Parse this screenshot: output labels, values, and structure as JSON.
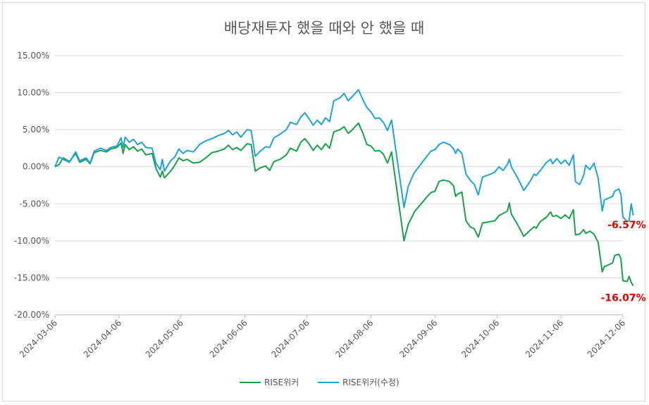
{
  "chart_data": {
    "type": "line",
    "title": "배당재투자 했을 때와 안 했을 때",
    "xlabel": "",
    "ylabel": "",
    "x_ticks": [
      "2024-03-06",
      "2024-04-06",
      "2024-05-06",
      "2024-06-06",
      "2024-07-06",
      "2024-08-06",
      "2024-09-06",
      "2024-10-06",
      "2024-11-06",
      "2024-12-06"
    ],
    "y_ticks": [
      "15.00%",
      "10.00%",
      "5.00%",
      "0.00%",
      "-5.00%",
      "-10.00%",
      "-15.00%",
      "-20.00%"
    ],
    "ylim": [
      -20,
      15
    ],
    "grid": "horizontal",
    "legend": "bottom",
    "series": [
      {
        "name": "RISE위커",
        "color": "#16a34a",
        "end_label": "-16.07%",
        "points": [
          [
            "2024-03-06",
            0.0
          ],
          [
            "2024-03-08",
            0.3
          ],
          [
            "2024-03-10",
            1.2
          ],
          [
            "2024-03-13",
            0.7
          ],
          [
            "2024-03-16",
            1.8
          ],
          [
            "2024-03-18",
            0.6
          ],
          [
            "2024-03-21",
            1.0
          ],
          [
            "2024-03-23",
            0.4
          ],
          [
            "2024-03-25",
            1.9
          ],
          [
            "2024-03-28",
            2.2
          ],
          [
            "2024-03-31",
            2.0
          ],
          [
            "2024-04-02",
            2.4
          ],
          [
            "2024-04-05",
            2.6
          ],
          [
            "2024-04-07",
            3.2
          ],
          [
            "2024-04-08",
            1.8
          ],
          [
            "2024-04-09",
            3.0
          ],
          [
            "2024-04-11",
            2.3
          ],
          [
            "2024-04-13",
            2.7
          ],
          [
            "2024-04-15",
            2.1
          ],
          [
            "2024-04-17",
            2.4
          ],
          [
            "2024-04-19",
            1.6
          ],
          [
            "2024-04-22",
            1.8
          ],
          [
            "2024-04-24",
            -0.3
          ],
          [
            "2024-04-26",
            -1.4
          ],
          [
            "2024-04-27",
            -0.6
          ],
          [
            "2024-04-28",
            -1.5
          ],
          [
            "2024-05-01",
            -0.6
          ],
          [
            "2024-05-03",
            0.2
          ],
          [
            "2024-05-05",
            1.2
          ],
          [
            "2024-05-07",
            0.8
          ],
          [
            "2024-05-09",
            1.0
          ],
          [
            "2024-05-12",
            0.5
          ],
          [
            "2024-05-15",
            0.6
          ],
          [
            "2024-05-18",
            1.2
          ],
          [
            "2024-05-21",
            1.9
          ],
          [
            "2024-05-24",
            2.1
          ],
          [
            "2024-05-27",
            2.4
          ],
          [
            "2024-05-29",
            2.9
          ],
          [
            "2024-05-31",
            2.3
          ],
          [
            "2024-06-02",
            2.6
          ],
          [
            "2024-06-04",
            2.2
          ],
          [
            "2024-06-07",
            3.1
          ],
          [
            "2024-06-09",
            3.0
          ],
          [
            "2024-06-11",
            -0.6
          ],
          [
            "2024-06-13",
            -0.2
          ],
          [
            "2024-06-16",
            0.1
          ],
          [
            "2024-06-18",
            -0.5
          ],
          [
            "2024-06-20",
            0.7
          ],
          [
            "2024-06-23",
            1.0
          ],
          [
            "2024-06-26",
            1.6
          ],
          [
            "2024-06-28",
            2.5
          ],
          [
            "2024-07-01",
            2.1
          ],
          [
            "2024-07-03",
            3.3
          ],
          [
            "2024-07-05",
            3.8
          ],
          [
            "2024-07-07",
            3.1
          ],
          [
            "2024-07-09",
            2.2
          ],
          [
            "2024-07-11",
            2.9
          ],
          [
            "2024-07-13",
            2.3
          ],
          [
            "2024-07-15",
            3.1
          ],
          [
            "2024-07-17",
            2.5
          ],
          [
            "2024-07-19",
            4.7
          ],
          [
            "2024-07-22",
            5.0
          ],
          [
            "2024-07-24",
            5.4
          ],
          [
            "2024-07-26",
            4.5
          ],
          [
            "2024-07-28",
            5.0
          ],
          [
            "2024-07-31",
            5.9
          ],
          [
            "2024-08-02",
            4.6
          ],
          [
            "2024-08-04",
            3.0
          ],
          [
            "2024-08-06",
            2.8
          ],
          [
            "2024-08-08",
            2.1
          ],
          [
            "2024-08-10",
            2.2
          ],
          [
            "2024-08-12",
            1.7
          ],
          [
            "2024-08-14",
            0.5
          ],
          [
            "2024-08-16",
            2.0
          ],
          [
            "2024-08-22",
            -10.0
          ],
          [
            "2024-08-24",
            -7.8
          ],
          [
            "2024-08-26",
            -6.7
          ],
          [
            "2024-08-27",
            -6.1
          ],
          [
            "2024-08-30",
            -5.1
          ],
          [
            "2024-09-02",
            -4.1
          ],
          [
            "2024-09-04",
            -3.5
          ],
          [
            "2024-09-06",
            -3.3
          ],
          [
            "2024-09-08",
            -2.0
          ],
          [
            "2024-09-10",
            -1.8
          ],
          [
            "2024-09-13",
            -2.0
          ],
          [
            "2024-09-15",
            -2.6
          ],
          [
            "2024-09-16",
            -4.0
          ],
          [
            "2024-09-17",
            -3.7
          ],
          [
            "2024-09-19",
            -3.4
          ],
          [
            "2024-09-21",
            -7.3
          ],
          [
            "2024-09-23",
            -8.1
          ],
          [
            "2024-09-25",
            -8.4
          ],
          [
            "2024-09-27",
            -9.5
          ],
          [
            "2024-09-29",
            -7.6
          ],
          [
            "2024-10-03",
            -7.4
          ],
          [
            "2024-10-05",
            -7.3
          ],
          [
            "2024-10-07",
            -6.6
          ],
          [
            "2024-10-09",
            -6.3
          ],
          [
            "2024-10-11",
            -6.0
          ],
          [
            "2024-10-12",
            -4.9
          ],
          [
            "2024-10-13",
            -6.4
          ],
          [
            "2024-10-16",
            -7.8
          ],
          [
            "2024-10-19",
            -9.4
          ],
          [
            "2024-10-22",
            -8.6
          ],
          [
            "2024-10-24",
            -8.1
          ],
          [
            "2024-10-25",
            -8.3
          ],
          [
            "2024-10-27",
            -7.4
          ],
          [
            "2024-10-30",
            -6.8
          ],
          [
            "2024-11-01",
            -6.1
          ],
          [
            "2024-11-02",
            -6.7
          ],
          [
            "2024-11-04",
            -6.6
          ],
          [
            "2024-11-06",
            -7.0
          ],
          [
            "2024-11-08",
            -6.5
          ],
          [
            "2024-11-10",
            -7.0
          ],
          [
            "2024-11-12",
            -5.8
          ],
          [
            "2024-11-13",
            -9.2
          ],
          [
            "2024-11-15",
            -9.1
          ],
          [
            "2024-11-17",
            -8.5
          ],
          [
            "2024-11-18",
            -9.0
          ],
          [
            "2024-11-20",
            -8.7
          ],
          [
            "2024-11-22",
            -9.1
          ],
          [
            "2024-11-24",
            -10.2
          ],
          [
            "2024-11-26",
            -14.2
          ],
          [
            "2024-11-27",
            -13.5
          ],
          [
            "2024-12-01",
            -13.0
          ],
          [
            "2024-12-02",
            -12.0
          ],
          [
            "2024-12-04",
            -11.8
          ],
          [
            "2024-12-05",
            -12.4
          ],
          [
            "2024-12-06",
            -15.4
          ],
          [
            "2024-12-08",
            -15.5
          ],
          [
            "2024-12-09",
            -14.8
          ],
          [
            "2024-12-10",
            -15.6
          ],
          [
            "2024-12-11",
            -16.07
          ]
        ]
      },
      {
        "name": "RISE위커(수정)",
        "color": "#1fa3dc",
        "end_label": "-6.57%",
        "points": [
          [
            "2024-03-06",
            0.0
          ],
          [
            "2024-03-08",
            1.3
          ],
          [
            "2024-03-10",
            1.0
          ],
          [
            "2024-03-13",
            0.6
          ],
          [
            "2024-03-16",
            2.0
          ],
          [
            "2024-03-18",
            0.8
          ],
          [
            "2024-03-21",
            1.2
          ],
          [
            "2024-03-23",
            0.5
          ],
          [
            "2024-03-25",
            2.1
          ],
          [
            "2024-03-28",
            2.5
          ],
          [
            "2024-03-31",
            2.2
          ],
          [
            "2024-04-02",
            2.6
          ],
          [
            "2024-04-05",
            2.8
          ],
          [
            "2024-04-07",
            3.9
          ],
          [
            "2024-04-08",
            2.6
          ],
          [
            "2024-04-09",
            4.0
          ],
          [
            "2024-04-11",
            3.3
          ],
          [
            "2024-04-13",
            3.7
          ],
          [
            "2024-04-15",
            3.0
          ],
          [
            "2024-04-17",
            3.3
          ],
          [
            "2024-04-19",
            2.6
          ],
          [
            "2024-04-22",
            2.5
          ],
          [
            "2024-04-24",
            0.4
          ],
          [
            "2024-04-26",
            -0.4
          ],
          [
            "2024-04-27",
            1.0
          ],
          [
            "2024-04-28",
            -0.6
          ],
          [
            "2024-05-01",
            0.8
          ],
          [
            "2024-05-03",
            1.3
          ],
          [
            "2024-05-05",
            2.4
          ],
          [
            "2024-05-07",
            1.8
          ],
          [
            "2024-05-09",
            2.2
          ],
          [
            "2024-05-12",
            2.0
          ],
          [
            "2024-05-15",
            3.0
          ],
          [
            "2024-05-18",
            3.5
          ],
          [
            "2024-05-21",
            3.8
          ],
          [
            "2024-05-24",
            4.2
          ],
          [
            "2024-05-27",
            4.5
          ],
          [
            "2024-05-29",
            4.9
          ],
          [
            "2024-05-31",
            4.3
          ],
          [
            "2024-06-02",
            4.7
          ],
          [
            "2024-06-04",
            4.0
          ],
          [
            "2024-06-07",
            5.0
          ],
          [
            "2024-06-09",
            4.9
          ],
          [
            "2024-06-11",
            1.4
          ],
          [
            "2024-06-13",
            2.0
          ],
          [
            "2024-06-16",
            2.7
          ],
          [
            "2024-06-18",
            2.6
          ],
          [
            "2024-06-20",
            3.9
          ],
          [
            "2024-06-23",
            4.4
          ],
          [
            "2024-06-26",
            5.0
          ],
          [
            "2024-06-28",
            6.0
          ],
          [
            "2024-07-01",
            5.7
          ],
          [
            "2024-07-03",
            6.7
          ],
          [
            "2024-07-05",
            7.3
          ],
          [
            "2024-07-07",
            6.5
          ],
          [
            "2024-07-09",
            5.6
          ],
          [
            "2024-07-11",
            6.3
          ],
          [
            "2024-07-13",
            5.7
          ],
          [
            "2024-07-15",
            6.6
          ],
          [
            "2024-07-17",
            6.1
          ],
          [
            "2024-07-19",
            8.9
          ],
          [
            "2024-07-22",
            9.3
          ],
          [
            "2024-07-24",
            9.9
          ],
          [
            "2024-07-26",
            8.9
          ],
          [
            "2024-07-28",
            9.5
          ],
          [
            "2024-07-31",
            10.4
          ],
          [
            "2024-08-02",
            9.1
          ],
          [
            "2024-08-04",
            8.0
          ],
          [
            "2024-08-06",
            7.4
          ],
          [
            "2024-08-08",
            6.5
          ],
          [
            "2024-08-10",
            6.6
          ],
          [
            "2024-08-12",
            6.0
          ],
          [
            "2024-08-14",
            4.9
          ],
          [
            "2024-08-16",
            6.3
          ],
          [
            "2024-08-22",
            -5.5
          ],
          [
            "2024-08-24",
            -2.7
          ],
          [
            "2024-08-26",
            -1.4
          ],
          [
            "2024-08-27",
            -0.8
          ],
          [
            "2024-08-30",
            0.3
          ],
          [
            "2024-09-02",
            1.4
          ],
          [
            "2024-09-04",
            2.1
          ],
          [
            "2024-09-06",
            2.3
          ],
          [
            "2024-09-08",
            3.0
          ],
          [
            "2024-09-10",
            3.3
          ],
          [
            "2024-09-13",
            3.0
          ],
          [
            "2024-09-15",
            2.4
          ],
          [
            "2024-09-16",
            1.8
          ],
          [
            "2024-09-17",
            2.4
          ],
          [
            "2024-09-19",
            1.8
          ],
          [
            "2024-09-21",
            -1.0
          ],
          [
            "2024-09-23",
            -1.8
          ],
          [
            "2024-09-25",
            -2.4
          ],
          [
            "2024-09-27",
            -3.8
          ],
          [
            "2024-09-29",
            -1.4
          ],
          [
            "2024-10-03",
            -1.0
          ],
          [
            "2024-10-05",
            -0.7
          ],
          [
            "2024-10-07",
            0.0
          ],
          [
            "2024-10-09",
            -0.5
          ],
          [
            "2024-10-11",
            0.3
          ],
          [
            "2024-10-12",
            1.0
          ],
          [
            "2024-10-13",
            0.0
          ],
          [
            "2024-10-16",
            -1.5
          ],
          [
            "2024-10-19",
            -3.2
          ],
          [
            "2024-10-22",
            -2.0
          ],
          [
            "2024-10-24",
            -1.0
          ],
          [
            "2024-10-25",
            -1.2
          ],
          [
            "2024-10-27",
            -0.5
          ],
          [
            "2024-10-30",
            0.6
          ],
          [
            "2024-11-01",
            1.0
          ],
          [
            "2024-11-02",
            0.4
          ],
          [
            "2024-11-04",
            1.1
          ],
          [
            "2024-11-06",
            0.4
          ],
          [
            "2024-11-08",
            0.9
          ],
          [
            "2024-11-10",
            0.2
          ],
          [
            "2024-11-12",
            1.6
          ],
          [
            "2024-11-13",
            -2.0
          ],
          [
            "2024-11-15",
            -2.4
          ],
          [
            "2024-11-17",
            -1.2
          ],
          [
            "2024-11-18",
            0.2
          ],
          [
            "2024-11-20",
            -0.4
          ],
          [
            "2024-11-22",
            0.5
          ],
          [
            "2024-11-24",
            -1.5
          ],
          [
            "2024-11-26",
            -6.0
          ],
          [
            "2024-11-27",
            -4.5
          ],
          [
            "2024-12-01",
            -4.0
          ],
          [
            "2024-12-02",
            -3.3
          ],
          [
            "2024-12-04",
            -3.0
          ],
          [
            "2024-12-05",
            -3.7
          ],
          [
            "2024-12-06",
            -6.8
          ],
          [
            "2024-12-08",
            -7.4
          ],
          [
            "2024-12-09",
            -7.3
          ],
          [
            "2024-12-10",
            -5.0
          ],
          [
            "2024-12-11",
            -6.57
          ]
        ]
      }
    ]
  }
}
